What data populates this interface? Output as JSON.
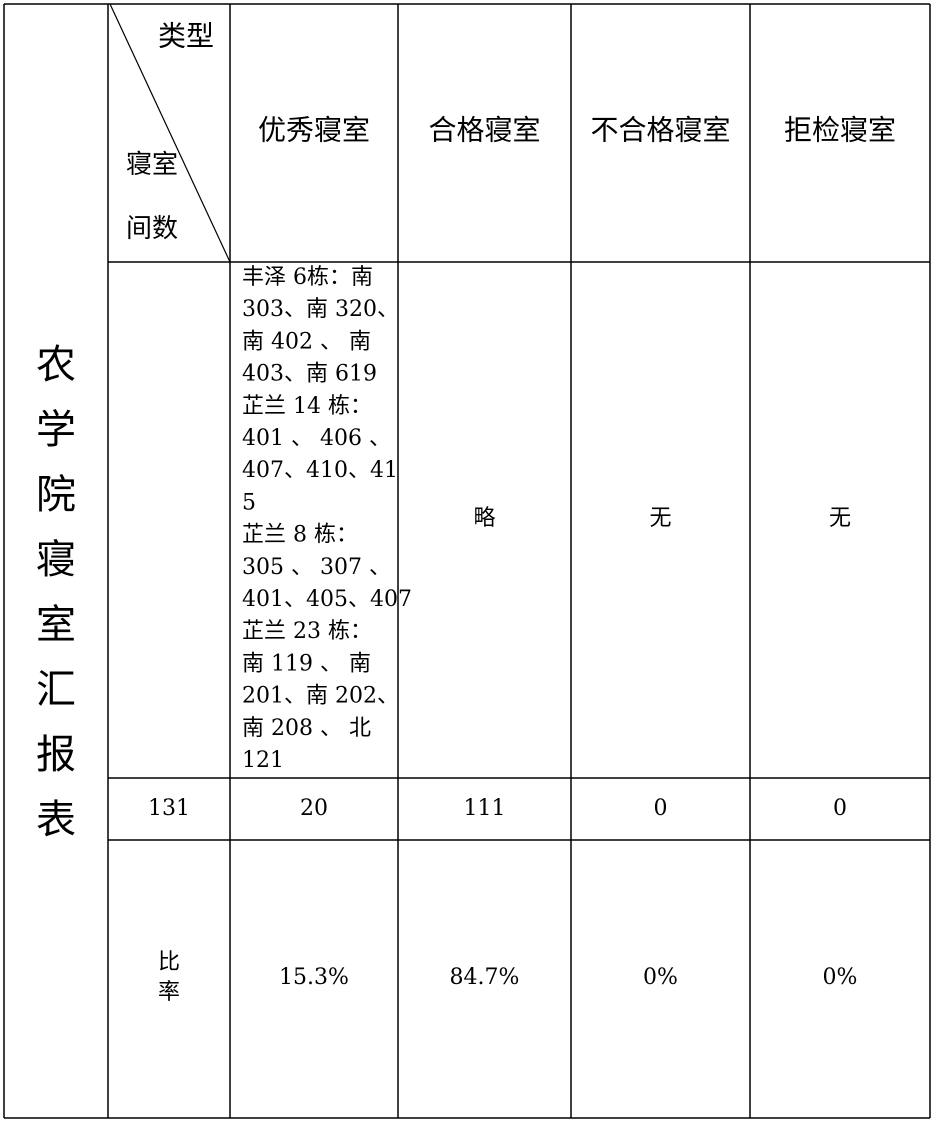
{
  "table": {
    "title": [
      "农",
      "学",
      "院",
      "寝",
      "室",
      "汇",
      "报",
      "表"
    ],
    "corner": {
      "type_label": "类型",
      "room_label": "寝室",
      "count_label": "间数"
    },
    "headers": [
      "优秀寝室",
      "合格寝室",
      "不合格寝室",
      "拒检寝室"
    ],
    "detail_row": {
      "excellent_lines": [
        "丰泽 6栋：南",
        "303、南 320、",
        "南 402 、 南",
        "403、南 619",
        "芷兰 14 栋：",
        "401 、 406 、",
        "407、410、41",
        "5",
        "芷兰 8 栋：",
        "305 、 307 、",
        "401、405、407",
        "芷兰 23 栋：",
        "南 119 、 南",
        "201、南 202、",
        "南 208 、 北",
        "121"
      ],
      "qualified": "略",
      "unqualified": "无",
      "refused": "无"
    },
    "count_row": [
      "131",
      "20",
      "111",
      "0",
      "0"
    ],
    "ratio_row": {
      "label": [
        "比",
        "率"
      ],
      "values": [
        "15.3%",
        "84.7%",
        "0%",
        "0%"
      ]
    }
  }
}
